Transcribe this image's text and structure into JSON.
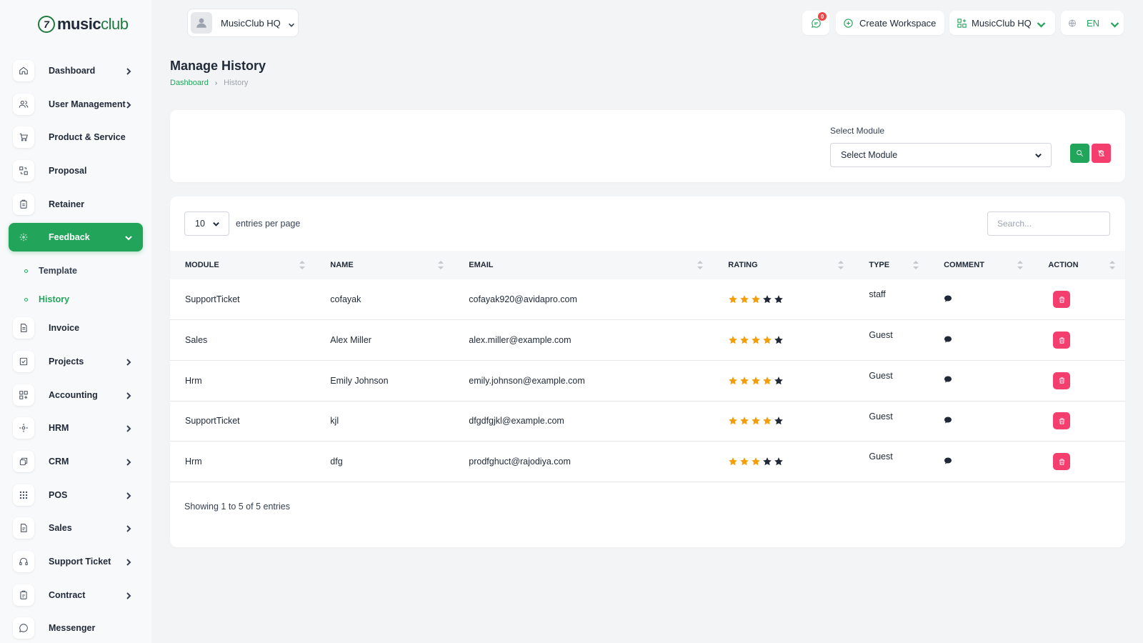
{
  "brand": {
    "logo_mark": "7",
    "logo_main": "music",
    "logo_accent": "club"
  },
  "topbar": {
    "workspace_label": "MusicClub HQ",
    "messages_badge": "0",
    "create_workspace_label": "Create Workspace",
    "workspace_switch_label": "MusicClub HQ",
    "language_label": "EN"
  },
  "sidebar": {
    "items": [
      {
        "label": "Dashboard",
        "icon": "home-icon",
        "chevron": true
      },
      {
        "label": "User Management",
        "icon": "users-icon",
        "chevron": true
      },
      {
        "label": "Product & Service",
        "icon": "cart-icon",
        "chevron": false
      },
      {
        "label": "Proposal",
        "icon": "proposal-icon",
        "chevron": false
      },
      {
        "label": "Retainer",
        "icon": "retainer-icon",
        "chevron": false
      },
      {
        "label": "Feedback",
        "icon": "feedback-icon",
        "chevron": true,
        "active": true
      },
      {
        "label": "Invoice",
        "icon": "invoice-icon",
        "chevron": false
      },
      {
        "label": "Projects",
        "icon": "projects-icon",
        "chevron": true
      },
      {
        "label": "Accounting",
        "icon": "accounting-icon",
        "chevron": true
      },
      {
        "label": "HRM",
        "icon": "hrm-icon",
        "chevron": true
      },
      {
        "label": "CRM",
        "icon": "crm-icon",
        "chevron": true
      },
      {
        "label": "POS",
        "icon": "pos-icon",
        "chevron": true
      },
      {
        "label": "Sales",
        "icon": "sales-icon",
        "chevron": true
      },
      {
        "label": "Support Ticket",
        "icon": "headset-icon",
        "chevron": true
      },
      {
        "label": "Contract",
        "icon": "contract-icon",
        "chevron": true
      },
      {
        "label": "Messenger",
        "icon": "chat-icon",
        "chevron": false
      }
    ],
    "feedback_sub": [
      {
        "label": "Template",
        "active": false
      },
      {
        "label": "History",
        "active": true
      }
    ]
  },
  "page": {
    "title": "Manage History",
    "breadcrumb": {
      "root": "Dashboard",
      "current": "History"
    }
  },
  "filter": {
    "module_label": "Select Module",
    "module_value": "Select Module"
  },
  "table": {
    "per_page_value": "10",
    "per_page_label": "entries per page",
    "search_placeholder": "Search...",
    "columns": [
      "MODULE",
      "NAME",
      "EMAIL",
      "RATING",
      "TYPE",
      "COMMENT",
      "ACTION"
    ],
    "rows": [
      {
        "module": "SupportTicket",
        "name": "cofayak",
        "email": "cofayak920@avidapro.com",
        "rating": 3,
        "type": "staff"
      },
      {
        "module": "Sales",
        "name": "Alex Miller",
        "email": "alex.miller@example.com",
        "rating": 4,
        "type": "Guest"
      },
      {
        "module": "Hrm",
        "name": "Emily Johnson",
        "email": "emily.johnson@example.com",
        "rating": 4,
        "type": "Guest"
      },
      {
        "module": "SupportTicket",
        "name": "kjl",
        "email": "dfgdfgjkl@example.com",
        "rating": 4,
        "type": "Guest"
      },
      {
        "module": "Hrm",
        "name": "dfg",
        "email": "prodfghuct@rajodiya.com",
        "rating": 3,
        "type": "Guest"
      }
    ],
    "rating_max": 5,
    "showing_text": "Showing 1 to 5 of 5 entries"
  },
  "colors": {
    "accent": "#22a55b",
    "danger": "#f43f6e",
    "star_filled": "#f59e0b",
    "star_empty": "#1f2937"
  }
}
